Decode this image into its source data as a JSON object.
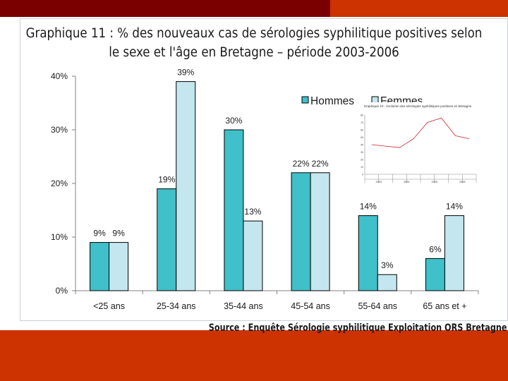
{
  "title_line1": "Graphique 11 : % des nouveaux cas de sérologies syphilitique positives selon",
  "title_line2": "le sexe et l'âge en Bretagne – période 2003-2006",
  "source": "Source : Enquête Sérologie syphilitique Exploitation ORS Bretagne",
  "colors": {
    "hommes": "#40c0c8",
    "femmes": "#c4e6ee",
    "accent": "#cc3300",
    "dark": "#7a0000"
  },
  "chart_data": {
    "type": "bar",
    "categories": [
      "<25 ans",
      "25-34 ans",
      "35-44 ans",
      "45-54 ans",
      "55-64 ans",
      "65 ans et +"
    ],
    "series": [
      {
        "name": "Hommes",
        "values": [
          9,
          19,
          30,
          22,
          14,
          6
        ],
        "labels": [
          "9%",
          "19%",
          "30%",
          "22%",
          "14%",
          "6%"
        ]
      },
      {
        "name": "Femmes",
        "values": [
          9,
          39,
          13,
          22,
          3,
          14
        ],
        "labels": [
          "9%",
          "39%",
          "13%",
          "22%",
          "3%",
          "14%"
        ]
      }
    ],
    "ylim": [
      0,
      40
    ],
    "yticks": [
      0,
      10,
      20,
      30,
      40
    ],
    "ytick_labels": [
      "0%",
      "10%",
      "20%",
      "30%",
      "40%"
    ],
    "legend_position": "top-right",
    "inset": {
      "type": "line",
      "title": "Graphique 10 : évolution des sérologies syphilitiques positives en Bretagne",
      "year_labels": [
        "2003",
        "2004",
        "2005",
        "2006"
      ],
      "ylim": [
        0,
        80
      ],
      "values": [
        40,
        38,
        36,
        48,
        70,
        76,
        52,
        48
      ]
    }
  }
}
